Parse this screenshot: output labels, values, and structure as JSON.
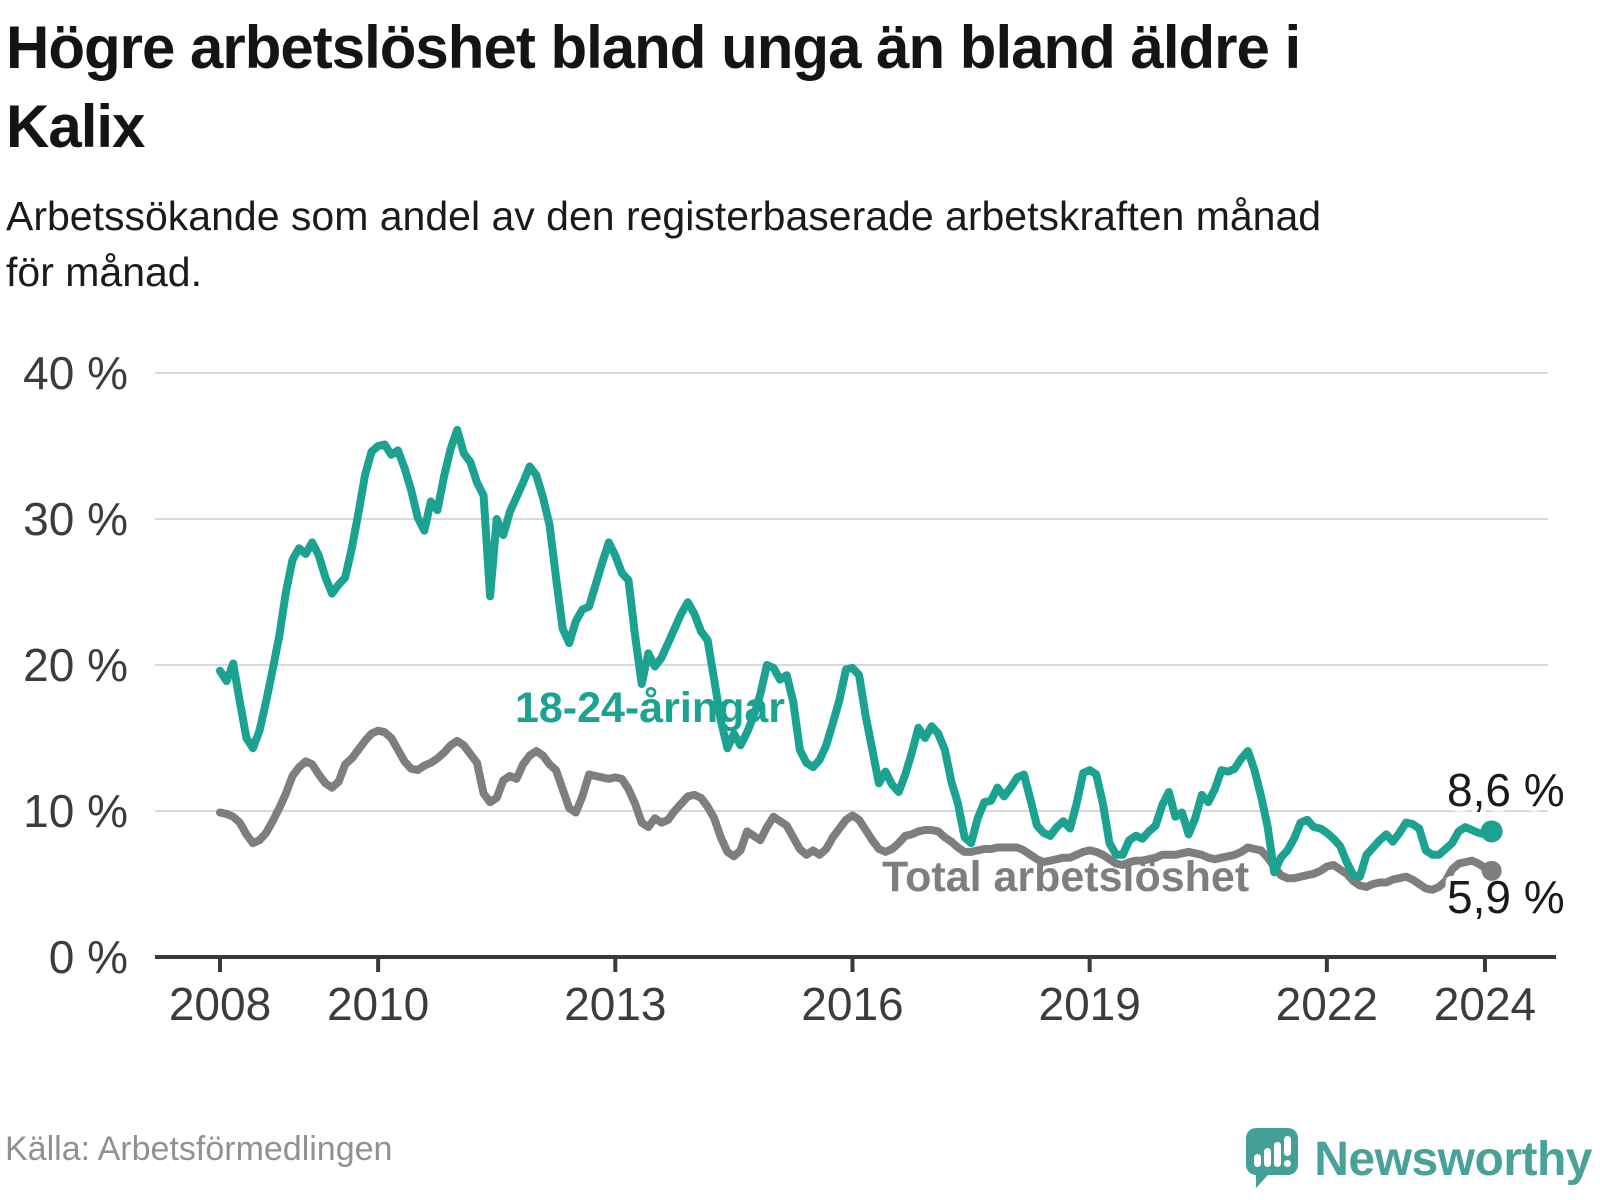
{
  "header": {
    "title_lines": [
      "Högre arbetslöshet bland unga än bland äldre i",
      "Kalix"
    ],
    "subtitle_lines": [
      "Arbetssökande som andel av den registerbaserade arbetskraften månad",
      "för månad."
    ]
  },
  "footer": {
    "source": "Källa: Arbetsförmedlingen",
    "brand": "Newsworthy"
  },
  "chart_data": {
    "type": "line",
    "title": "Högre arbetslöshet bland unga än bland äldre i Kalix",
    "subtitle": "Arbetssökande som andel av den registerbaserade arbetskraften månad för månad.",
    "x_unit": "month",
    "x_start": "2008-01",
    "x_end": "2024-02",
    "x_tick_years": [
      2008,
      2010,
      2013,
      2016,
      2019,
      2022,
      2024
    ],
    "x_tick_labels": [
      "2008",
      "2010",
      "2013",
      "2016",
      "2019",
      "2022",
      "2024"
    ],
    "y_ticks": [
      0,
      10,
      20,
      30,
      40
    ],
    "y_tick_labels": [
      "0 %",
      "10 %",
      "20 %",
      "30 %",
      "40 %"
    ],
    "ylim": [
      0,
      40
    ],
    "grid": "horizontal",
    "legend_position": "inline-labels",
    "series": [
      {
        "name": "Total arbetslöshet",
        "color": "#7e7e7e",
        "end_label": "5,9 %",
        "end_value": 5.9,
        "values": [
          9.9,
          9.8,
          9.6,
          9.2,
          8.4,
          7.8,
          8.0,
          8.5,
          9.3,
          10.2,
          11.2,
          12.4,
          13.0,
          13.4,
          13.2,
          12.5,
          11.9,
          11.6,
          12.0,
          13.2,
          13.6,
          14.2,
          14.8,
          15.3,
          15.5,
          15.4,
          15.0,
          14.2,
          13.4,
          12.9,
          12.8,
          13.1,
          13.3,
          13.6,
          14.0,
          14.5,
          14.8,
          14.5,
          13.9,
          13.3,
          11.2,
          10.6,
          10.9,
          12.1,
          12.4,
          12.2,
          13.2,
          13.8,
          14.1,
          13.8,
          13.2,
          12.8,
          11.5,
          10.2,
          9.9,
          11.0,
          12.5,
          12.4,
          12.3,
          12.2,
          12.3,
          12.2,
          11.5,
          10.5,
          9.2,
          8.9,
          9.5,
          9.2,
          9.4,
          10.0,
          10.5,
          11.0,
          11.1,
          10.9,
          10.3,
          9.5,
          8.2,
          7.2,
          6.9,
          7.3,
          8.6,
          8.3,
          8.0,
          8.9,
          9.6,
          9.3,
          9.0,
          8.2,
          7.4,
          7.0,
          7.3,
          7.0,
          7.4,
          8.2,
          8.8,
          9.4,
          9.7,
          9.4,
          8.7,
          8.0,
          7.4,
          7.2,
          7.4,
          7.8,
          8.3,
          8.4,
          8.6,
          8.7,
          8.7,
          8.6,
          8.2,
          7.9,
          7.5,
          7.2,
          7.2,
          7.3,
          7.4,
          7.4,
          7.5,
          7.5,
          7.5,
          7.5,
          7.3,
          7.0,
          6.7,
          6.5,
          6.6,
          6.7,
          6.8,
          6.8,
          7.0,
          7.2,
          7.3,
          7.2,
          7.0,
          6.7,
          6.4,
          6.3,
          6.5,
          6.6,
          6.6,
          6.7,
          6.8,
          7.0,
          7.0,
          7.0,
          7.1,
          7.2,
          7.1,
          7.0,
          6.8,
          6.7,
          6.8,
          6.9,
          7.0,
          7.2,
          7.5,
          7.4,
          7.3,
          6.8,
          6.2,
          5.6,
          5.4,
          5.4,
          5.5,
          5.6,
          5.7,
          5.9,
          6.2,
          6.3,
          6.0,
          5.7,
          5.2,
          4.9,
          4.8,
          5.0,
          5.1,
          5.1,
          5.3,
          5.4,
          5.5,
          5.3,
          5.0,
          4.7,
          4.6,
          4.8,
          5.2,
          6.0,
          6.4,
          6.5,
          6.6,
          6.4,
          6.1,
          5.9
        ]
      },
      {
        "name": "18-24-åringar",
        "color": "#1ba291",
        "end_label": "8,6 %",
        "end_value": 8.6,
        "values": [
          19.6,
          18.9,
          20.1,
          17.5,
          15.0,
          14.3,
          15.5,
          17.5,
          19.7,
          22.0,
          25.0,
          27.2,
          28.0,
          27.6,
          28.4,
          27.5,
          26.0,
          24.9,
          25.5,
          26.0,
          28.0,
          30.4,
          33.0,
          34.6,
          35.0,
          35.1,
          34.4,
          34.7,
          33.5,
          32.0,
          30.1,
          29.2,
          31.2,
          30.6,
          32.9,
          34.8,
          36.1,
          34.5,
          33.9,
          32.5,
          31.6,
          24.7,
          30.0,
          28.9,
          30.5,
          31.5,
          32.5,
          33.6,
          33.0,
          31.5,
          29.6,
          26.0,
          22.5,
          21.5,
          23.0,
          23.8,
          24.0,
          25.5,
          27.0,
          28.4,
          27.5,
          26.3,
          25.8,
          22.0,
          18.7,
          20.8,
          19.9,
          20.5,
          21.5,
          22.5,
          23.5,
          24.3,
          23.5,
          22.3,
          21.7,
          19.0,
          16.2,
          14.3,
          15.3,
          14.5,
          15.4,
          16.5,
          18.0,
          20.0,
          19.8,
          19.0,
          19.3,
          17.5,
          14.2,
          13.3,
          13.0,
          13.5,
          14.5,
          16.0,
          17.6,
          19.7,
          19.8,
          19.3,
          16.5,
          14.2,
          11.9,
          12.7,
          11.8,
          11.3,
          12.5,
          14.0,
          15.7,
          15.0,
          15.8,
          15.3,
          14.2,
          12.0,
          10.5,
          8.2,
          7.8,
          9.5,
          10.6,
          10.7,
          11.6,
          11.0,
          11.6,
          12.3,
          12.5,
          10.8,
          9.0,
          8.5,
          8.3,
          8.9,
          9.3,
          8.8,
          10.5,
          12.6,
          12.8,
          12.5,
          10.5,
          7.8,
          7.0,
          7.0,
          8.0,
          8.3,
          8.1,
          8.6,
          9.0,
          10.4,
          11.3,
          9.6,
          9.9,
          8.4,
          9.5,
          11.1,
          10.6,
          11.5,
          12.8,
          12.7,
          12.9,
          13.6,
          14.1,
          12.8,
          11.0,
          8.9,
          5.8,
          6.8,
          7.3,
          8.1,
          9.2,
          9.4,
          8.9,
          8.8,
          8.5,
          8.1,
          7.6,
          6.5,
          5.6,
          5.5,
          7.0,
          7.5,
          8.0,
          8.4,
          7.9,
          8.5,
          9.2,
          9.1,
          8.8,
          7.3,
          7.0,
          7.0,
          7.4,
          7.8,
          8.6,
          8.9,
          8.7,
          8.5,
          8.4,
          8.6
        ]
      }
    ],
    "annotations": [
      {
        "text": "18-24-åringar",
        "series": "18-24-åringar"
      },
      {
        "text": "Total arbetslöshet",
        "series": "Total arbetslöshet"
      }
    ]
  }
}
